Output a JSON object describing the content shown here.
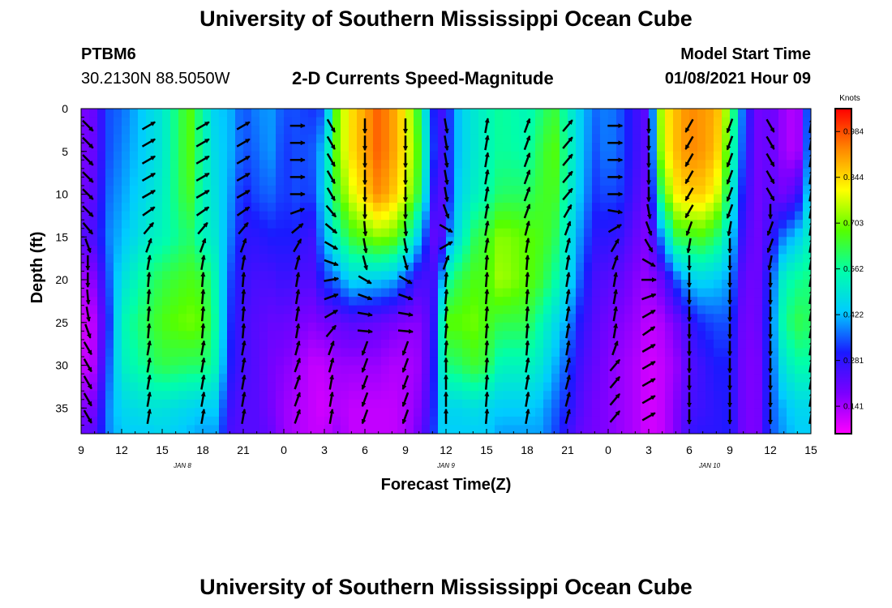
{
  "header": {
    "title_top": "University of Southern Mississippi Ocean Cube",
    "title_bottom": "University of Southern Mississippi Ocean Cube",
    "station_id": "PTBM6",
    "station_coords": "30.2130N 88.5050W",
    "chart_title": "2-D Currents Speed-Magnitude",
    "model_start_label": "Model Start Time",
    "model_start_value": "01/08/2021 Hour 09"
  },
  "chart_data": {
    "type": "heatmap",
    "title": "2-D Currents Speed-Magnitude",
    "xlabel": "Forecast Time(Z)",
    "ylabel": "Depth (ft)",
    "x_unit": "hours since model start (2021-01-08 09Z)",
    "xlim": [
      0,
      54
    ],
    "ylim": [
      0,
      38
    ],
    "y_inverted": true,
    "x_ticks": [
      {
        "h": 0,
        "label": "9"
      },
      {
        "h": 3,
        "label": "12"
      },
      {
        "h": 6,
        "label": "15"
      },
      {
        "h": 9,
        "label": "18"
      },
      {
        "h": 12,
        "label": "21"
      },
      {
        "h": 15,
        "label": "0"
      },
      {
        "h": 18,
        "label": "3"
      },
      {
        "h": 21,
        "label": "6"
      },
      {
        "h": 24,
        "label": "9"
      },
      {
        "h": 27,
        "label": "12"
      },
      {
        "h": 30,
        "label": "15"
      },
      {
        "h": 33,
        "label": "18"
      },
      {
        "h": 36,
        "label": "21"
      },
      {
        "h": 39,
        "label": "0"
      },
      {
        "h": 42,
        "label": "3"
      },
      {
        "h": 45,
        "label": "6"
      },
      {
        "h": 48,
        "label": "9"
      },
      {
        "h": 51,
        "label": "12"
      },
      {
        "h": 54,
        "label": "15"
      }
    ],
    "date_labels": [
      {
        "h": 7.5,
        "label": "JAN  8"
      },
      {
        "h": 27,
        "label": "JAN  9"
      },
      {
        "h": 46.5,
        "label": "JAN  10"
      }
    ],
    "y_ticks": [
      0,
      5,
      10,
      15,
      20,
      25,
      30,
      35
    ],
    "colorbar": {
      "label": "Knots",
      "range": [
        0,
        1.05
      ],
      "ticks": [
        "0.984",
        "0.844",
        "0.703",
        "0.562",
        "0.422",
        "0.281",
        "0.141"
      ],
      "colors": [
        "#ff00ff",
        "#7a00ff",
        "#1a1aff",
        "#00ccff",
        "#00ffaa",
        "#55ff00",
        "#ffff00",
        "#ff8800",
        "#ff0000"
      ]
    },
    "speed_profile_by_hour": [
      [
        0,
        [
          0.13,
          0.13,
          0.14,
          0.18,
          0.08,
          0.04,
          0.05,
          0.12,
          0.16
        ]
      ],
      [
        1,
        [
          0.16,
          0.16,
          0.18,
          0.2,
          0.12,
          0.07,
          0.08,
          0.14,
          0.18
        ]
      ],
      [
        2,
        [
          0.3,
          0.3,
          0.32,
          0.34,
          0.3,
          0.26,
          0.3,
          0.34,
          0.34
        ]
      ],
      [
        3,
        [
          0.32,
          0.34,
          0.36,
          0.38,
          0.44,
          0.5,
          0.48,
          0.42,
          0.4
        ]
      ],
      [
        5,
        [
          0.42,
          0.42,
          0.44,
          0.48,
          0.56,
          0.6,
          0.56,
          0.45,
          0.4
        ]
      ],
      [
        6,
        [
          0.46,
          0.46,
          0.48,
          0.5,
          0.6,
          0.64,
          0.6,
          0.45,
          0.42
        ]
      ],
      [
        8,
        [
          0.66,
          0.66,
          0.64,
          0.58,
          0.64,
          0.68,
          0.58,
          0.42,
          0.38
        ]
      ],
      [
        9,
        [
          0.52,
          0.52,
          0.5,
          0.5,
          0.62,
          0.66,
          0.58,
          0.4,
          0.36
        ]
      ],
      [
        10,
        [
          0.4,
          0.42,
          0.44,
          0.46,
          0.5,
          0.52,
          0.5,
          0.4,
          0.36
        ]
      ],
      [
        11,
        [
          0.38,
          0.38,
          0.36,
          0.34,
          0.3,
          0.28,
          0.26,
          0.22,
          0.2
        ]
      ],
      [
        12,
        [
          0.3,
          0.3,
          0.26,
          0.24,
          0.22,
          0.2,
          0.2,
          0.18,
          0.18
        ]
      ],
      [
        13,
        [
          0.34,
          0.32,
          0.3,
          0.24,
          0.2,
          0.18,
          0.18,
          0.18,
          0.18
        ]
      ],
      [
        14,
        [
          0.36,
          0.36,
          0.32,
          0.26,
          0.2,
          0.16,
          0.14,
          0.14,
          0.16
        ]
      ],
      [
        15,
        [
          0.3,
          0.28,
          0.28,
          0.26,
          0.22,
          0.16,
          0.12,
          0.1,
          0.1
        ]
      ],
      [
        16,
        [
          0.3,
          0.3,
          0.3,
          0.26,
          0.2,
          0.14,
          0.1,
          0.08,
          0.08
        ]
      ],
      [
        17,
        [
          0.28,
          0.3,
          0.28,
          0.2,
          0.18,
          0.12,
          0.06,
          0.06,
          0.06
        ]
      ],
      [
        18,
        [
          0.3,
          0.4,
          0.42,
          0.38,
          0.28,
          0.14,
          0.06,
          0.04,
          0.06
        ]
      ],
      [
        19,
        [
          0.7,
          0.7,
          0.64,
          0.52,
          0.34,
          0.16,
          0.1,
          0.08,
          0.1
        ]
      ],
      [
        20,
        [
          0.82,
          0.82,
          0.76,
          0.62,
          0.42,
          0.18,
          0.1,
          0.06,
          0.06
        ]
      ],
      [
        22,
        [
          0.96,
          0.96,
          0.92,
          0.7,
          0.4,
          0.16,
          0.1,
          0.06,
          0.06
        ]
      ],
      [
        23,
        [
          0.9,
          0.9,
          0.86,
          0.68,
          0.38,
          0.14,
          0.08,
          0.06,
          0.06
        ]
      ],
      [
        24,
        [
          0.8,
          0.8,
          0.76,
          0.58,
          0.3,
          0.12,
          0.08,
          0.08,
          0.08
        ]
      ],
      [
        25,
        [
          0.6,
          0.64,
          0.6,
          0.4,
          0.2,
          0.12,
          0.1,
          0.12,
          0.14
        ]
      ],
      [
        26,
        [
          0.28,
          0.3,
          0.24,
          0.18,
          0.2,
          0.2,
          0.22,
          0.24,
          0.26
        ]
      ],
      [
        26.5,
        [
          0.2,
          0.2,
          0.16,
          0.12,
          0.26,
          0.4,
          0.42,
          0.4,
          0.4
        ]
      ],
      [
        27,
        [
          0.24,
          0.24,
          0.22,
          0.3,
          0.52,
          0.66,
          0.56,
          0.42,
          0.4
        ]
      ],
      [
        28,
        [
          0.4,
          0.4,
          0.42,
          0.46,
          0.6,
          0.66,
          0.58,
          0.42,
          0.4
        ]
      ],
      [
        29,
        [
          0.46,
          0.46,
          0.48,
          0.58,
          0.64,
          0.68,
          0.62,
          0.44,
          0.4
        ]
      ],
      [
        30,
        [
          0.5,
          0.5,
          0.52,
          0.62,
          0.64,
          0.64,
          0.6,
          0.42,
          0.4
        ]
      ],
      [
        31,
        [
          0.54,
          0.54,
          0.58,
          0.7,
          0.72,
          0.6,
          0.5,
          0.4,
          0.36
        ]
      ],
      [
        33,
        [
          0.5,
          0.52,
          0.58,
          0.66,
          0.66,
          0.6,
          0.5,
          0.4,
          0.36
        ]
      ],
      [
        34,
        [
          0.56,
          0.6,
          0.62,
          0.64,
          0.62,
          0.52,
          0.46,
          0.38,
          0.36
        ]
      ],
      [
        35,
        [
          0.62,
          0.66,
          0.64,
          0.6,
          0.54,
          0.44,
          0.38,
          0.32,
          0.3
        ]
      ],
      [
        36,
        [
          0.5,
          0.52,
          0.5,
          0.46,
          0.44,
          0.36,
          0.3,
          0.26,
          0.22
        ]
      ],
      [
        37,
        [
          0.4,
          0.4,
          0.38,
          0.34,
          0.3,
          0.24,
          0.2,
          0.18,
          0.16
        ]
      ],
      [
        38,
        [
          0.32,
          0.3,
          0.28,
          0.24,
          0.2,
          0.18,
          0.16,
          0.14,
          0.14
        ]
      ],
      [
        39,
        [
          0.34,
          0.34,
          0.3,
          0.24,
          0.18,
          0.14,
          0.12,
          0.12,
          0.12
        ]
      ],
      [
        40,
        [
          0.3,
          0.3,
          0.28,
          0.22,
          0.16,
          0.12,
          0.1,
          0.1,
          0.1
        ]
      ],
      [
        41,
        [
          0.22,
          0.22,
          0.2,
          0.16,
          0.12,
          0.1,
          0.08,
          0.08,
          0.08
        ]
      ],
      [
        42,
        [
          0.16,
          0.16,
          0.14,
          0.12,
          0.1,
          0.06,
          0.04,
          0.04,
          0.04
        ]
      ],
      [
        43,
        [
          0.78,
          0.76,
          0.62,
          0.36,
          0.16,
          0.08,
          0.06,
          0.06,
          0.06
        ]
      ],
      [
        44,
        [
          0.86,
          0.86,
          0.8,
          0.6,
          0.3,
          0.14,
          0.1,
          0.12,
          0.12
        ]
      ],
      [
        45,
        [
          0.92,
          0.92,
          0.84,
          0.62,
          0.4,
          0.22,
          0.18,
          0.2,
          0.22
        ]
      ],
      [
        46,
        [
          0.9,
          0.9,
          0.84,
          0.64,
          0.42,
          0.28,
          0.22,
          0.22,
          0.24
        ]
      ],
      [
        47,
        [
          0.88,
          0.86,
          0.78,
          0.58,
          0.4,
          0.3,
          0.26,
          0.24,
          0.24
        ]
      ],
      [
        48,
        [
          0.66,
          0.6,
          0.52,
          0.44,
          0.36,
          0.3,
          0.26,
          0.26,
          0.26
        ]
      ],
      [
        49,
        [
          0.3,
          0.28,
          0.24,
          0.2,
          0.16,
          0.14,
          0.14,
          0.14,
          0.14
        ]
      ],
      [
        50,
        [
          0.14,
          0.14,
          0.14,
          0.14,
          0.14,
          0.14,
          0.12,
          0.12,
          0.12
        ]
      ],
      [
        51,
        [
          0.16,
          0.16,
          0.18,
          0.22,
          0.28,
          0.3,
          0.3,
          0.3,
          0.3
        ]
      ],
      [
        52,
        [
          0.1,
          0.1,
          0.14,
          0.34,
          0.5,
          0.54,
          0.46,
          0.38,
          0.36
        ]
      ],
      [
        53,
        [
          0.06,
          0.06,
          0.2,
          0.4,
          0.54,
          0.6,
          0.52,
          0.42,
          0.4
        ]
      ],
      [
        54,
        [
          0.4,
          0.42,
          0.46,
          0.5,
          0.56,
          0.58,
          0.52,
          0.42,
          0.4
        ]
      ]
    ],
    "speed_profile_depths_ft": [
      0,
      5,
      10,
      15,
      20,
      25,
      30,
      35,
      38
    ],
    "vector_times_h": [
      0.5,
      5,
      9,
      12,
      16,
      18.5,
      21,
      24,
      27,
      30,
      33,
      36,
      39.5,
      42,
      45,
      48,
      51,
      54
    ],
    "vector_depths_ft": [
      2,
      4,
      6,
      8,
      10,
      12,
      14,
      16,
      18,
      20,
      22,
      24,
      26,
      28,
      30,
      32,
      34,
      36
    ],
    "vector_heading_deg_by_time": [
      [
        135,
        135,
        135,
        135,
        135,
        135,
        140,
        160,
        180,
        180,
        175,
        170,
        160,
        150,
        150,
        150,
        150,
        150
      ],
      [
        60,
        60,
        60,
        60,
        60,
        55,
        40,
        20,
        10,
        5,
        5,
        5,
        5,
        10,
        10,
        10,
        10,
        10
      ],
      [
        60,
        60,
        60,
        60,
        60,
        55,
        40,
        20,
        10,
        5,
        5,
        5,
        5,
        10,
        10,
        10,
        10,
        10
      ],
      [
        60,
        60,
        60,
        60,
        60,
        55,
        40,
        20,
        10,
        5,
        5,
        5,
        5,
        10,
        10,
        10,
        10,
        10
      ],
      [
        90,
        90,
        90,
        90,
        90,
        70,
        50,
        30,
        15,
        10,
        10,
        10,
        10,
        15,
        20,
        20,
        20,
        20
      ],
      [
        150,
        150,
        150,
        150,
        150,
        140,
        130,
        120,
        110,
        80,
        70,
        60,
        40,
        20,
        15,
        10,
        10,
        10
      ],
      [
        180,
        180,
        180,
        180,
        180,
        180,
        175,
        170,
        165,
        120,
        110,
        100,
        95,
        200,
        200,
        200,
        200,
        200
      ],
      [
        180,
        180,
        180,
        180,
        180,
        180,
        175,
        170,
        165,
        120,
        110,
        100,
        95,
        200,
        200,
        200,
        200,
        200
      ],
      [
        170,
        170,
        170,
        170,
        170,
        160,
        120,
        60,
        20,
        5,
        5,
        5,
        5,
        5,
        0,
        0,
        0,
        0
      ],
      [
        10,
        10,
        10,
        10,
        10,
        10,
        10,
        10,
        5,
        5,
        5,
        5,
        5,
        5,
        5,
        5,
        5,
        5
      ],
      [
        20,
        20,
        20,
        20,
        20,
        20,
        15,
        10,
        5,
        5,
        5,
        5,
        5,
        5,
        10,
        10,
        10,
        10
      ],
      [
        40,
        40,
        40,
        40,
        40,
        30,
        20,
        15,
        10,
        10,
        10,
        10,
        10,
        10,
        15,
        15,
        15,
        15
      ],
      [
        90,
        90,
        90,
        90,
        90,
        100,
        60,
        30,
        20,
        10,
        10,
        10,
        10,
        20,
        40,
        40,
        40,
        40
      ],
      [
        180,
        180,
        180,
        180,
        180,
        170,
        160,
        150,
        120,
        90,
        70,
        60,
        55,
        60,
        60,
        60,
        60,
        60
      ],
      [
        210,
        210,
        210,
        210,
        210,
        210,
        200,
        190,
        180,
        180,
        180,
        180,
        180,
        180,
        180,
        180,
        180,
        180
      ],
      [
        200,
        200,
        200,
        200,
        200,
        200,
        190,
        180,
        180,
        180,
        180,
        180,
        180,
        180,
        180,
        180,
        180,
        180
      ],
      [
        150,
        150,
        150,
        150,
        150,
        180,
        200,
        200,
        190,
        180,
        180,
        180,
        180,
        180,
        180,
        180,
        180,
        180
      ],
      [
        10,
        10,
        10,
        10,
        10,
        10,
        10,
        10,
        10,
        10,
        10,
        10,
        10,
        10,
        10,
        10,
        10,
        10
      ]
    ]
  }
}
